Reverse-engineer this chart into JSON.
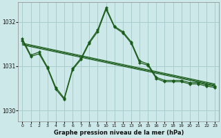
{
  "background_color": "#cce8e8",
  "grid_color": "#aacccc",
  "line_color": "#1a5c1a",
  "title": "Graphe pression niveau de la mer (hPa)",
  "xlim": [
    -0.5,
    23.5
  ],
  "ylim": [
    1029.75,
    1032.45
  ],
  "yticks": [
    1030,
    1031,
    1032
  ],
  "xticks": [
    0,
    1,
    2,
    3,
    4,
    5,
    6,
    7,
    8,
    9,
    10,
    11,
    12,
    13,
    14,
    15,
    16,
    17,
    18,
    19,
    20,
    21,
    22,
    23
  ],
  "flat_lines": [
    [
      1031.52,
      1031.48,
      1031.44,
      1031.4,
      1031.36,
      1031.32,
      1031.28,
      1031.24,
      1031.2,
      1031.16,
      1031.12,
      1031.08,
      1031.04,
      1031.0,
      1030.96,
      1030.92,
      1030.88,
      1030.84,
      1030.8,
      1030.76,
      1030.72,
      1030.68,
      1030.64,
      1030.6
    ],
    [
      1031.5,
      1031.46,
      1031.42,
      1031.38,
      1031.34,
      1031.3,
      1031.26,
      1031.22,
      1031.18,
      1031.14,
      1031.1,
      1031.06,
      1031.02,
      1030.98,
      1030.94,
      1030.9,
      1030.86,
      1030.82,
      1030.78,
      1030.74,
      1030.7,
      1030.66,
      1030.62,
      1030.58
    ],
    [
      1031.48,
      1031.44,
      1031.4,
      1031.36,
      1031.32,
      1031.28,
      1031.24,
      1031.2,
      1031.16,
      1031.12,
      1031.08,
      1031.04,
      1031.0,
      1030.96,
      1030.92,
      1030.88,
      1030.84,
      1030.8,
      1030.76,
      1030.72,
      1030.68,
      1030.64,
      1030.6,
      1030.56
    ]
  ],
  "marker_line1_x": [
    0,
    1,
    2,
    3,
    4,
    5,
    6,
    7,
    8,
    9,
    10,
    11,
    12,
    13,
    14,
    15,
    16,
    17,
    18,
    19,
    20,
    21,
    22,
    23
  ],
  "marker_line1_y": [
    1031.58,
    1031.22,
    1031.28,
    1030.95,
    1030.48,
    1030.25,
    1030.92,
    1031.15,
    1031.52,
    1031.78,
    1032.28,
    1031.88,
    1031.75,
    1031.52,
    1031.08,
    1031.02,
    1030.72,
    1030.65,
    1030.65,
    1030.65,
    1030.6,
    1030.6,
    1030.55,
    1030.52
  ],
  "marker_line2_x": [
    0,
    1,
    2,
    3,
    4,
    5,
    6,
    7,
    8,
    9,
    10,
    11,
    12,
    13,
    14,
    15,
    16,
    17,
    18,
    19,
    20,
    21,
    22,
    23
  ],
  "marker_line2_y": [
    1031.62,
    1031.25,
    1031.32,
    1030.98,
    1030.52,
    1030.28,
    1030.95,
    1031.18,
    1031.55,
    1031.82,
    1032.32,
    1031.9,
    1031.78,
    1031.55,
    1031.12,
    1031.05,
    1030.75,
    1030.68,
    1030.68,
    1030.68,
    1030.63,
    1030.63,
    1030.58,
    1030.55
  ]
}
